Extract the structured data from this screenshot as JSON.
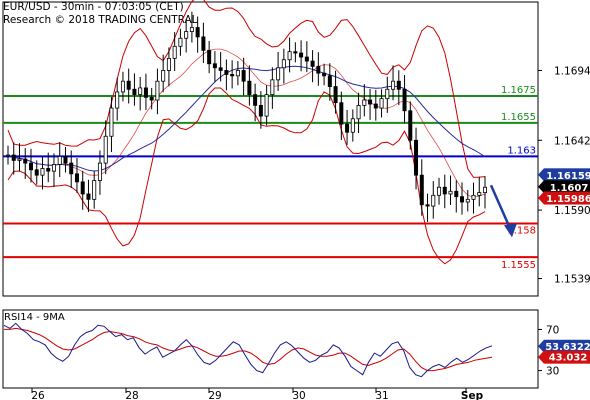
{
  "header": {
    "symbol_line": "EUR/USD - 30min - 07:03:05 (CET)",
    "copyright_line": "Research © 2018 TRADING CENTRAL"
  },
  "colors": {
    "background": "#ffffff",
    "candles": "#000000",
    "bollinger": "#cc0000",
    "moving_average": "#2a2aa0",
    "support_resistance_green": "#1a8c1a",
    "pivot_blue": "#0000cc",
    "support_red": "#e00000",
    "rsi_line": "#1a1a8c",
    "rsi_ma": "#cc0000",
    "badge_blue": "#1f3ca0",
    "badge_black": "#000000",
    "badge_red": "#d01010",
    "arrow": "#1f3ca0"
  },
  "chart_data": [
    {
      "type": "candlestick",
      "title": "EUR/USD - 30min - 07:03:05 (CET)",
      "x_ticks": [
        "26",
        "28",
        "29",
        "30",
        "31",
        "Sep"
      ],
      "y_ticks": [
        "1.1694",
        "1.1642",
        "1.1590",
        "1.1539"
      ],
      "ylim": [
        1.1526,
        1.1745
      ],
      "levels": [
        {
          "label": "1.1675",
          "value": 1.1675,
          "color": "#1a8c1a"
        },
        {
          "label": "1.1655",
          "value": 1.1655,
          "color": "#1a8c1a"
        },
        {
          "label": "1.163",
          "value": 1.163,
          "color": "#0000cc"
        },
        {
          "label": "1.158",
          "value": 1.158,
          "color": "#e00000"
        },
        {
          "label": "1.1555",
          "value": 1.1555,
          "color": "#e00000"
        }
      ],
      "badges": [
        {
          "label": "1.16159",
          "value": 1.16159,
          "color": "#1f3ca0"
        },
        {
          "label": "1.1607",
          "value": 1.1607,
          "color": "#000000"
        },
        {
          "label": "1.15986",
          "value": 1.15986,
          "color": "#d01010"
        }
      ],
      "series": [
        {
          "values": [
            1.1631,
            1.1627,
            1.1628,
            1.1625,
            1.162,
            1.1616,
            1.1621,
            1.1619,
            1.1624,
            1.163,
            1.1625,
            1.1617,
            1.1611,
            1.1602,
            1.1598,
            1.1612,
            1.1625,
            1.1645,
            1.1666,
            1.1678,
            1.1686,
            1.168,
            1.1676,
            1.1681,
            1.1674,
            1.1672,
            1.1686,
            1.1694,
            1.1703,
            1.1712,
            1.1718,
            1.1723,
            1.1726,
            1.1719,
            1.1709,
            1.1699,
            1.1696,
            1.1694,
            1.1691,
            1.169,
            1.1694,
            1.1686,
            1.1676,
            1.1668,
            1.166,
            1.1676,
            1.1687,
            1.1696,
            1.1702,
            1.1708,
            1.1707,
            1.1704,
            1.1701,
            1.1697,
            1.1692,
            1.169,
            1.1682,
            1.167,
            1.1654,
            1.1648,
            1.1658,
            1.1668,
            1.1672,
            1.1669,
            1.1666,
            1.1673,
            1.168,
            1.1686,
            1.168,
            1.1664,
            1.1642,
            1.1616,
            1.1594,
            1.1593,
            1.1601,
            1.1607,
            1.1602,
            1.1604,
            1.16,
            1.1596,
            1.1598,
            1.1601,
            1.1603,
            1.1607
          ]
        },
        {
          "name": "1.163",
          "values": [
            1.163
          ]
        },
        {
          "name": "1.158",
          "values": [
            1.158
          ]
        }
      ]
    },
    {
      "type": "line",
      "title": "RSI14 - 9MA",
      "x_ticks": [
        "26",
        "28",
        "29",
        "30",
        "31",
        "Sep"
      ],
      "y_ticks": [
        "70",
        "30"
      ],
      "ylim": [
        15,
        85
      ],
      "badges": [
        {
          "label": "53.6322",
          "value": 53.6322,
          "color": "#1f3ca0"
        },
        {
          "label": "43.032",
          "value": 43.032,
          "color": "#d01010"
        }
      ],
      "series": [
        {
          "values": [
            74,
            71,
            76,
            70,
            66,
            60,
            58,
            55,
            47,
            42,
            39,
            44,
            55,
            63,
            67,
            69,
            74,
            73,
            68,
            63,
            65,
            60,
            62,
            52,
            46,
            50,
            53,
            43,
            46,
            49,
            55,
            60,
            54,
            45,
            38,
            36,
            40,
            46,
            52,
            58,
            55,
            45,
            36,
            30,
            28,
            37,
            47,
            55,
            58,
            54,
            48,
            42,
            38,
            40,
            45,
            48,
            55,
            52,
            44,
            34,
            30,
            26,
            38,
            47,
            44,
            50,
            56,
            58,
            49,
            33,
            26,
            24,
            30,
            34,
            36,
            33,
            38,
            42,
            38,
            41,
            45,
            49,
            52,
            54
          ]
        },
        {
          "values": [
            70,
            70,
            71,
            70,
            69,
            67,
            65,
            62,
            58,
            54,
            51,
            50,
            51,
            54,
            57,
            60,
            64,
            67,
            68,
            67,
            66,
            64,
            63,
            61,
            58,
            56,
            55,
            52,
            50,
            49,
            51,
            53,
            54,
            52,
            49,
            46,
            44,
            44,
            45,
            47,
            49,
            49,
            47,
            43,
            38,
            36,
            37,
            41,
            46,
            50,
            52,
            51,
            48,
            45,
            44,
            44,
            45,
            47,
            47,
            44,
            40,
            36,
            35,
            37,
            39,
            42,
            46,
            50,
            51,
            46,
            39,
            33,
            30,
            30,
            31,
            32,
            34,
            36,
            37,
            38,
            40,
            41,
            42,
            43
          ]
        }
      ]
    }
  ]
}
